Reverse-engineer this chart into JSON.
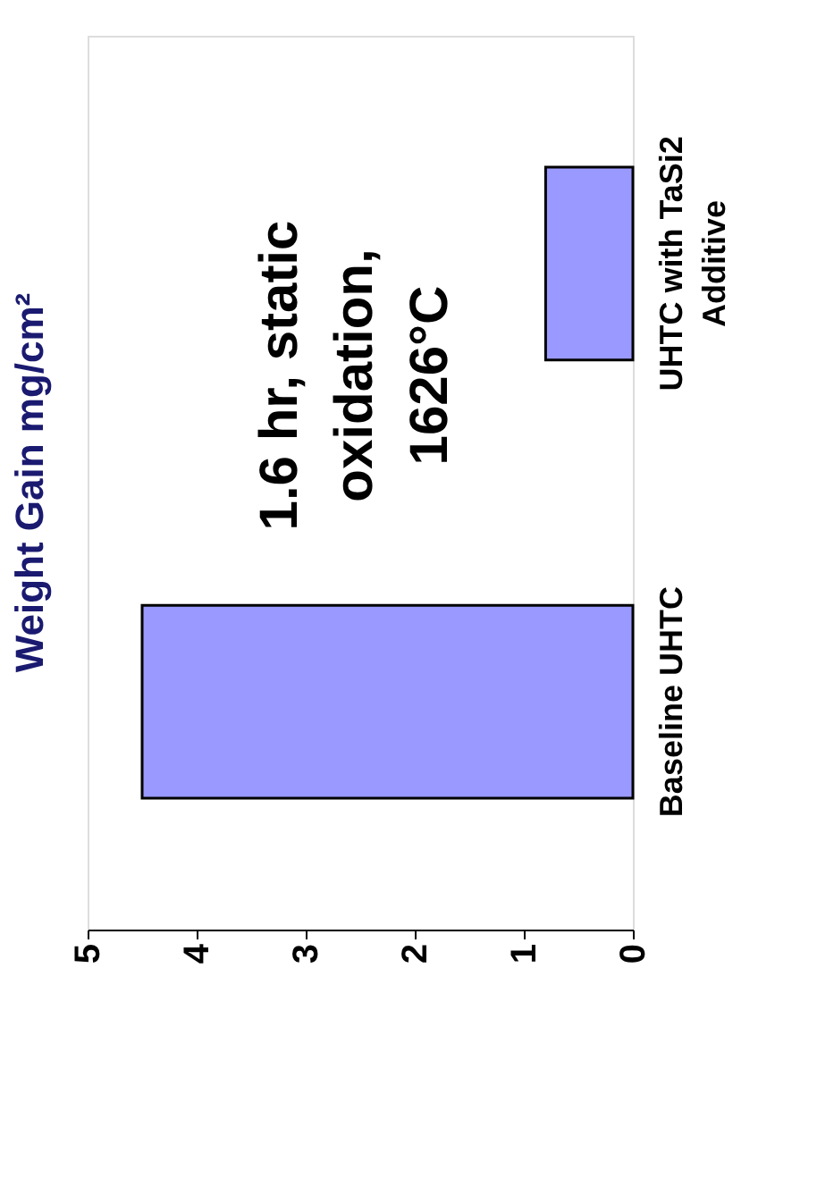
{
  "chart_data": {
    "type": "bar",
    "orientation": "horizontal",
    "categories": [
      "UHTC with TaSi2 Additive",
      "Baseline UHTC"
    ],
    "values": [
      0.8,
      4.5
    ],
    "color": "#9999ff",
    "ylabel": "Weight Gain mg/cm²",
    "xlim": [
      5,
      0
    ],
    "xticks": [
      0,
      1,
      2,
      3,
      4,
      5
    ],
    "annotations": [
      "1.6 hr, static\noxidation,\n1626°C"
    ],
    "grid": false
  }
}
